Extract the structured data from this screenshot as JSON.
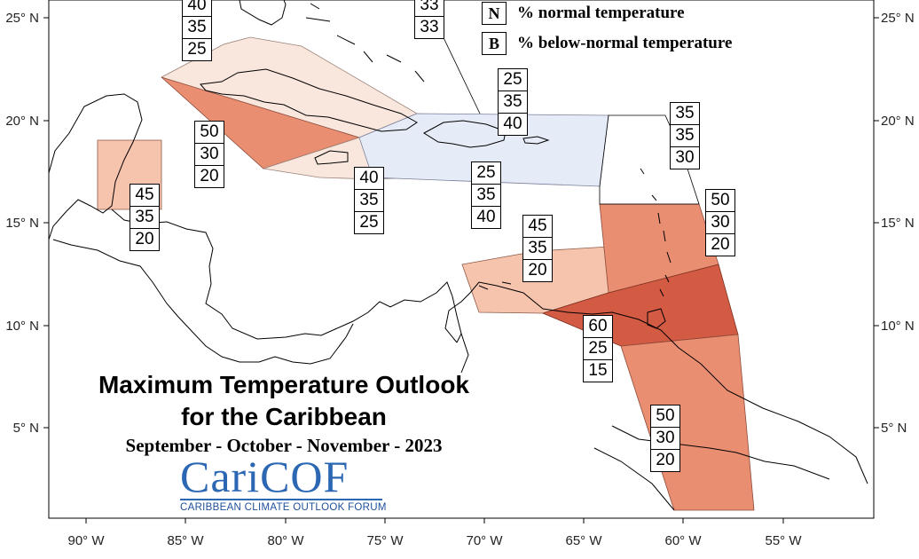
{
  "map": {
    "lat_labels": [
      "25° N",
      "20° N",
      "15° N",
      "10° N",
      "5° N"
    ],
    "lon_labels": [
      "90° W",
      "85° W",
      "80° W",
      "75° W",
      "70° W",
      "65° W",
      "60° W",
      "55° W"
    ]
  },
  "legend": {
    "items": [
      {
        "key": "N",
        "label": "% normal temperature"
      },
      {
        "key": "B",
        "label": "% below-normal temperature"
      }
    ]
  },
  "title": {
    "line1": "Maximum Temperature Outlook",
    "line2": "for the Caribbean",
    "subtitle": "September - October - November - 2023"
  },
  "logo": {
    "name": "CariCOF",
    "tagline": "CARIBBEAN CLIMATE OUTLOOK FORUM"
  },
  "colors": {
    "above_low": "#f9e7de",
    "above_mid": "#f6c3ad",
    "above_high": "#ea8e72",
    "above_very_high": "#d35a43",
    "below": "#e5ebf7",
    "land_line": "#000000"
  },
  "probability_boxes": [
    {
      "id": "bahamas-north",
      "values": [
        "33",
        "33"
      ]
    },
    {
      "id": "florida-strait",
      "values": [
        "40",
        "35",
        "25"
      ]
    },
    {
      "id": "cuba",
      "values": [
        "50",
        "30",
        "20"
      ]
    },
    {
      "id": "belize",
      "values": [
        "45",
        "35",
        "20"
      ]
    },
    {
      "id": "jamaica",
      "values": [
        "40",
        "35",
        "25"
      ]
    },
    {
      "id": "hispaniola-pr",
      "values": [
        "25",
        "35",
        "40"
      ]
    },
    {
      "id": "caribbean-sea",
      "values": [
        "25",
        "35",
        "40"
      ]
    },
    {
      "id": "abc-islands",
      "values": [
        "45",
        "35",
        "20"
      ]
    },
    {
      "id": "atlantic-northeast",
      "values": [
        "35",
        "35",
        "30"
      ]
    },
    {
      "id": "leeward-windward",
      "values": [
        "50",
        "30",
        "20"
      ]
    },
    {
      "id": "trinidad-barbados",
      "values": [
        "60",
        "25",
        "15"
      ]
    },
    {
      "id": "guianas",
      "values": [
        "50",
        "30",
        "20"
      ]
    }
  ]
}
